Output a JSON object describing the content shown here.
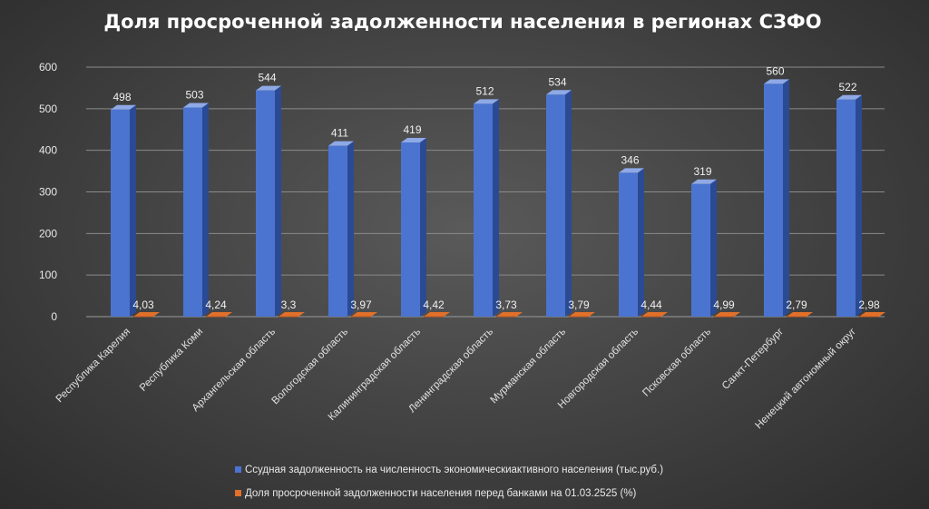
{
  "chart_data": {
    "type": "bar",
    "title": "Доля просроченной задолженности населения в регионах СЗФО",
    "categories": [
      "Республика Карелия",
      "Республика Коми",
      "Архангельская область",
      "Вологодская область",
      "Калининградская область",
      "Ленинградская область",
      "Мурманская область",
      "Новгородская область",
      "Псковская область",
      "Санкт-Петербург",
      "Ненецкий автономный округ"
    ],
    "series": [
      {
        "name": "Ссудная задолженность на численность экономическиактивного населения (тыс.руб.)",
        "values": [
          498,
          503,
          544,
          411,
          419,
          512,
          534,
          346,
          319,
          560,
          522
        ],
        "labels": [
          "498",
          "503",
          "544",
          "411",
          "419",
          "512",
          "534",
          "346",
          "319",
          "560",
          "522"
        ],
        "color": "#4a74d0"
      },
      {
        "name": "Доля просроченной задолженности населения перед банками на 01.03.2525 (%)",
        "values": [
          4.03,
          4.24,
          3.3,
          3.97,
          4.42,
          3.73,
          3.79,
          4.44,
          4.99,
          2.79,
          2.98
        ],
        "labels": [
          "4,03",
          "4,24",
          "3,3",
          "3,97",
          "4,42",
          "3,73",
          "3,79",
          "4,44",
          "4,99",
          "2,79",
          "2,98"
        ],
        "color": "#e0702a"
      }
    ],
    "ylim": [
      0,
      600
    ],
    "yticks": [
      "0",
      "100",
      "200",
      "300",
      "400",
      "500",
      "600"
    ],
    "grid": true,
    "legend_position": "bottom",
    "xlabel": "",
    "ylabel": ""
  }
}
